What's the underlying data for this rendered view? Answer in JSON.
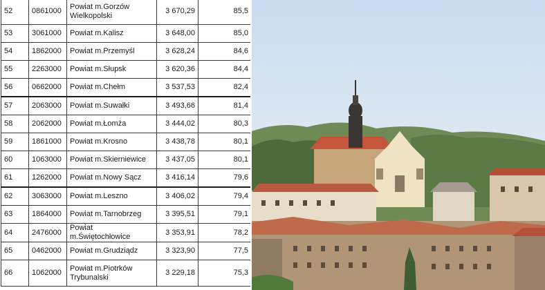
{
  "table": {
    "rows": [
      {
        "no": "52",
        "code": "0861000",
        "name": "Powiat m.Gorzów Wielkopolski",
        "value": "3 670,29",
        "percent": "85,5"
      },
      {
        "no": "53",
        "code": "3061000",
        "name": "Powiat m.Kalisz",
        "value": "3 648,00",
        "percent": "85,0"
      },
      {
        "no": "54",
        "code": "1862000",
        "name": "Powiat m.Przemyśl",
        "value": "3 628,24",
        "percent": "84,6"
      },
      {
        "no": "55",
        "code": "2263000",
        "name": "Powiat m.Słupsk",
        "value": "3 620,36",
        "percent": "84,4"
      },
      {
        "no": "56",
        "code": "0662000",
        "name": "Powiat m.Chełm",
        "value": "3 537,53",
        "percent": "82,4"
      },
      {
        "no": "57",
        "code": "2063000",
        "name": "Powiat m.Suwałki",
        "value": "3 493,66",
        "percent": "81,4"
      },
      {
        "no": "58",
        "code": "2062000",
        "name": "Powiat m.Łomża",
        "value": "3 444,02",
        "percent": "80,3"
      },
      {
        "no": "59",
        "code": "1861000",
        "name": "Powiat m.Krosno",
        "value": "3 438,78",
        "percent": "80,1"
      },
      {
        "no": "60",
        "code": "1063000",
        "name": "Powiat m.Skierniewice",
        "value": "3 437,05",
        "percent": "80,1"
      },
      {
        "no": "61",
        "code": "1262000",
        "name": "Powiat m.Nowy Sącz",
        "value": "3 416,14",
        "percent": "79,6"
      },
      {
        "no": "62",
        "code": "3063000",
        "name": "Powiat m.Leszno",
        "value": "3 406,02",
        "percent": "79,4"
      },
      {
        "no": "63",
        "code": "1864000",
        "name": "Powiat m.Tarnobrzeg",
        "value": "3 395,51",
        "percent": "79,1"
      },
      {
        "no": "64",
        "code": "2476000",
        "name": "Powiat m.Świętochłowice",
        "value": "3 353,91",
        "percent": "78,2"
      },
      {
        "no": "65",
        "code": "0462000",
        "name": "Powiat m.Grudziądz",
        "value": "3 323,90",
        "percent": "77,5"
      },
      {
        "no": "66",
        "code": "1062000",
        "name": "Powiat m.Piotrków Trybunalski",
        "value": "3 229,18",
        "percent": "75,3"
      }
    ]
  },
  "colors": {
    "sky_top": "#c9dcef",
    "sky_bottom": "#f2f4f4",
    "hills": "#4d6b3a",
    "roof": "#c4553a",
    "church_facade": "#efe3c4",
    "tower_dark": "#3b3532",
    "wall_stone": "#b09677"
  }
}
